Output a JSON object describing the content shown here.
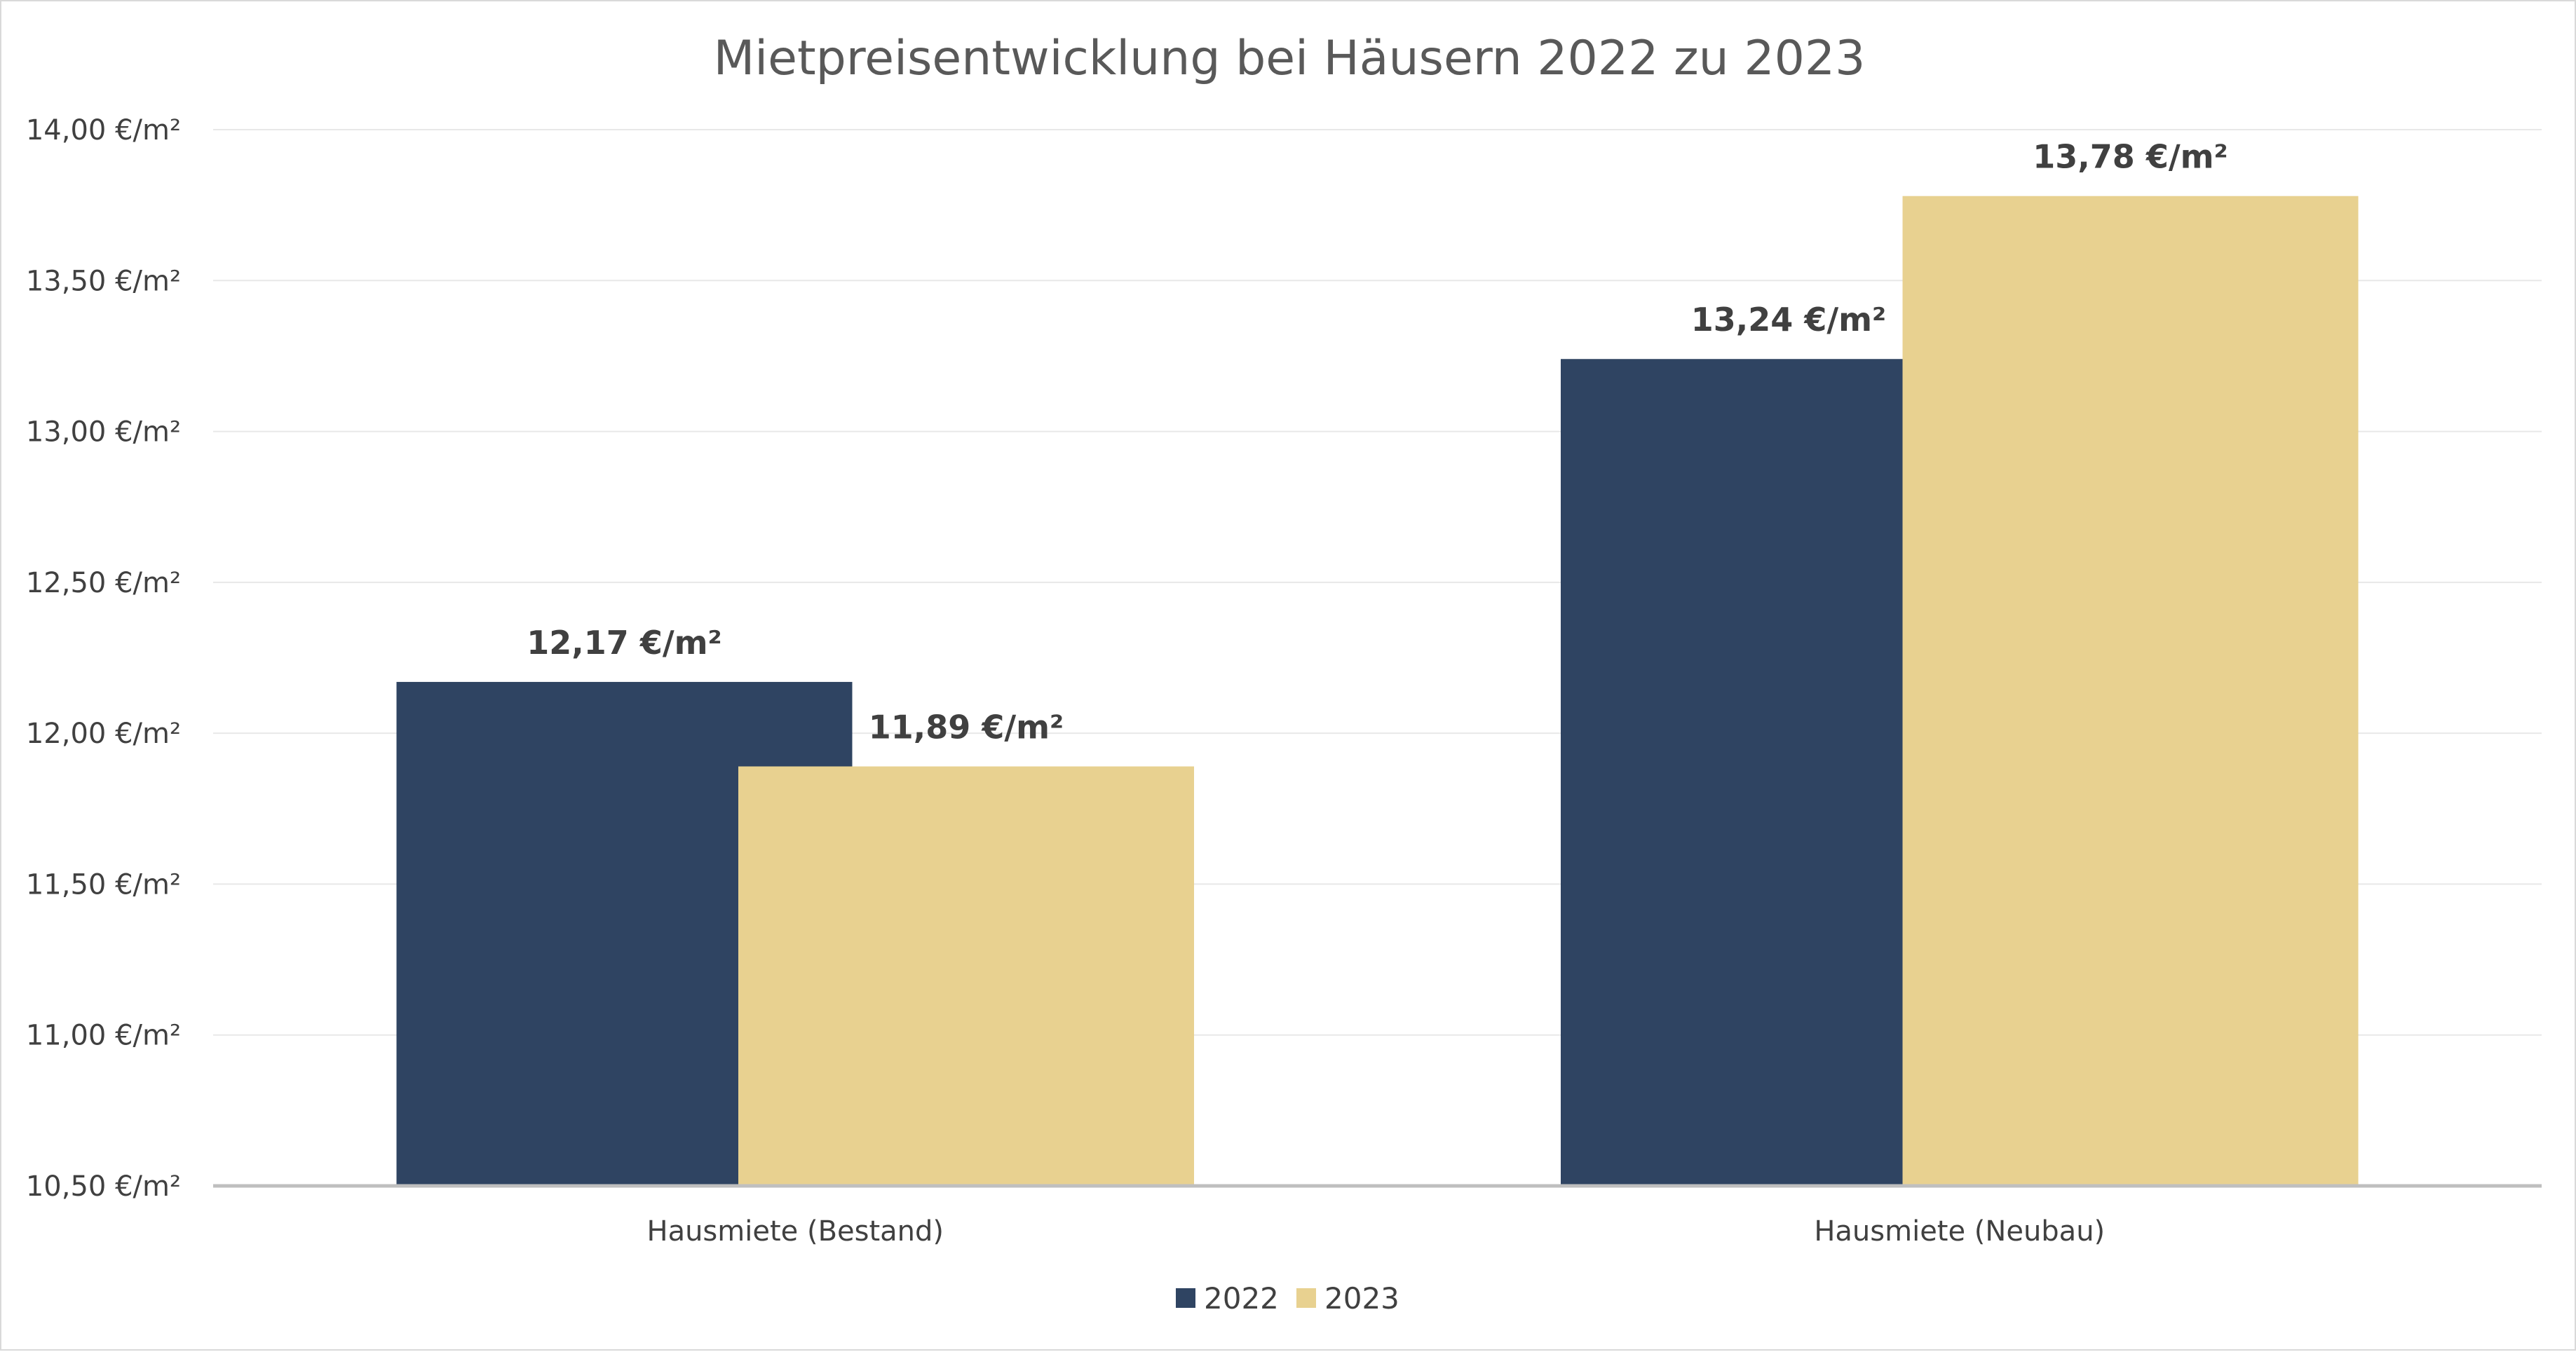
{
  "chart_data": {
    "type": "bar",
    "title": "Mietpreisentwicklung bei Häusern 2022 zu 2023",
    "categories": [
      "Hausmiete (Bestand)",
      "Hausmiete (Neubau)"
    ],
    "series": [
      {
        "name": "2022",
        "color": "#2f4462",
        "values": [
          12.17,
          13.24
        ],
        "labels": [
          "12,17 €/m²",
          "13,24 €/m²"
        ]
      },
      {
        "name": "2023",
        "color": "#e8d190",
        "values": [
          11.89,
          13.78
        ],
        "labels": [
          "11,89 €/m²",
          "13,78 €/m²"
        ]
      }
    ],
    "ylim": [
      10.5,
      14.0
    ],
    "yticks": [
      10.5,
      11.0,
      11.5,
      12.0,
      12.5,
      13.0,
      13.5,
      14.0
    ],
    "ytick_labels": [
      "10,50 €/m²",
      "11,00 €/m²",
      "11,50 €/m²",
      "12,00 €/m²",
      "12,50 €/m²",
      "13,00 €/m²",
      "13,50 €/m²",
      "14,00 €/m²"
    ],
    "xlabel": "",
    "ylabel": "",
    "grid": true,
    "legend_position": "bottom-center"
  }
}
